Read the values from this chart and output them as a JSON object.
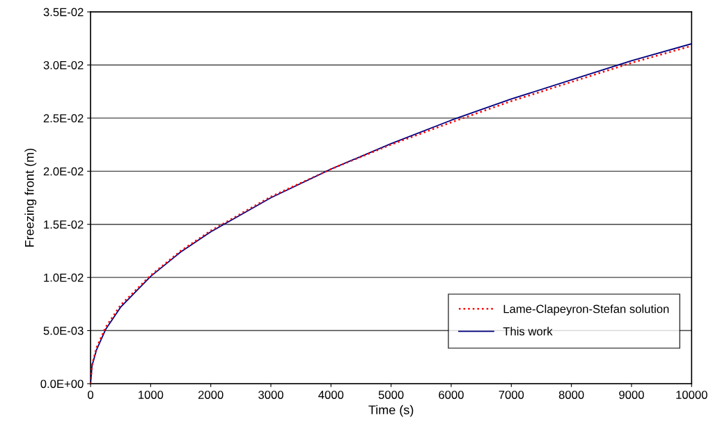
{
  "chart_data": {
    "type": "line",
    "xlabel": "Time (s)",
    "ylabel": "Freezing front (m)",
    "xlim": [
      0,
      10000
    ],
    "xticks": [
      0,
      1000,
      2000,
      3000,
      4000,
      5000,
      6000,
      7000,
      8000,
      9000,
      10000
    ],
    "ylim": [
      0,
      0.035
    ],
    "yticks": [
      {
        "value": 0,
        "label": "0.0E+00"
      },
      {
        "value": 0.005,
        "label": "5.0E-03"
      },
      {
        "value": 0.01,
        "label": "1.0E-02"
      },
      {
        "value": 0.015,
        "label": "1.5E-02"
      },
      {
        "value": 0.02,
        "label": "2.0E-02"
      },
      {
        "value": 0.025,
        "label": "2.5E-02"
      },
      {
        "value": 0.03,
        "label": "3.0E-02"
      },
      {
        "value": 0.035,
        "label": "3.5E-02"
      }
    ],
    "grid": "y",
    "legend": "bottom right",
    "marker": "none",
    "x": [
      0,
      25,
      100,
      250,
      500,
      1000,
      1500,
      2000,
      3000,
      4000,
      5000,
      6000,
      7000,
      8000,
      9000,
      10000
    ],
    "series": [
      {
        "name": "Lame-Clapeyron-Stefan solution",
        "color": "#ff0000",
        "line_style": "dotted",
        "values": [
          0,
          0.0018,
          0.0034,
          0.0053,
          0.0074,
          0.0102,
          0.0125,
          0.0144,
          0.0176,
          0.0202,
          0.0225,
          0.0246,
          0.0266,
          0.0284,
          0.0302,
          0.0318
        ]
      },
      {
        "name": "This work",
        "color": "#000080",
        "line_style": "solid",
        "values": [
          0,
          0.0017,
          0.0032,
          0.0051,
          0.0072,
          0.0101,
          0.0124,
          0.0143,
          0.0175,
          0.0202,
          0.0226,
          0.0248,
          0.0268,
          0.0286,
          0.0304,
          0.032
        ]
      }
    ]
  }
}
